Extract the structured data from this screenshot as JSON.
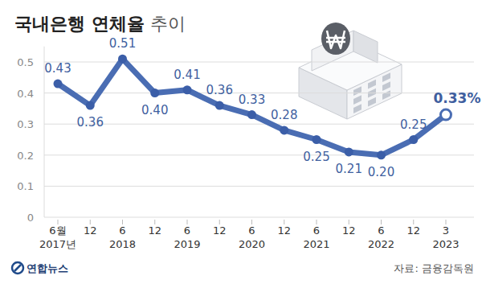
{
  "chart_data": {
    "type": "line",
    "title": "국내은행 연체율 추이",
    "categories": [
      "6월\n2017년",
      "12",
      "6\n2018",
      "12",
      "6\n2019",
      "12",
      "6\n2020",
      "12",
      "6\n2021",
      "12",
      "6\n2022",
      "12",
      "3\n2023"
    ],
    "values": [
      0.43,
      0.36,
      0.51,
      0.4,
      0.41,
      0.36,
      0.33,
      0.28,
      0.25,
      0.21,
      0.2,
      0.25,
      0.33
    ],
    "value_labels": [
      "0.43",
      "0.36",
      "0.51",
      "0.40",
      "0.41",
      "0.36",
      "0.33",
      "0.28",
      "0.25",
      "0.21",
      "0.20",
      "0.25",
      "0.33%"
    ],
    "color": "#4a6db3",
    "ylim": [
      0,
      0.55
    ],
    "yticks": [
      0,
      0.1,
      0.2,
      0.3,
      0.4,
      0.5
    ],
    "grid": true,
    "data_labels": true,
    "marker": "circle",
    "source": "자료: 금융감독원",
    "credit": "연합뉴스"
  }
}
